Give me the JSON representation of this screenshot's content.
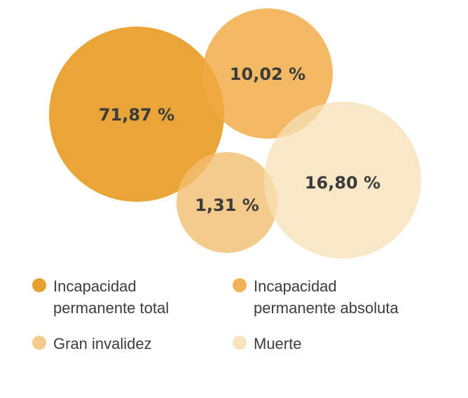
{
  "chart_data": {
    "type": "bubble",
    "series": [
      {
        "name": "Incapacidad permanente total",
        "value": 71.87,
        "label": "71,87 %",
        "color": "#E8A02D",
        "opacity": 0.95
      },
      {
        "name": "Incapacidad permanente absoluta",
        "value": 10.02,
        "label": "10,02 %",
        "color": "#F0A942",
        "opacity": 0.82
      },
      {
        "name": "Gran invalidez",
        "value": 1.31,
        "label": "1,31 %",
        "color": "#F3BE70",
        "opacity": 0.8
      },
      {
        "name": "Muerte",
        "value": 16.8,
        "label": "16,80 %",
        "color": "#F7E0B5",
        "opacity": 0.75
      }
    ]
  },
  "legend": {
    "items": [
      {
        "label": "Incapacidad\npermanente total",
        "color": "#E8A02D"
      },
      {
        "label": "Incapacidad\npermanente absoluta",
        "color": "#F0B457"
      },
      {
        "label": "Gran invalidez",
        "color": "#F5C98A"
      },
      {
        "label": "Muerte",
        "color": "#F8E3BE"
      }
    ]
  }
}
